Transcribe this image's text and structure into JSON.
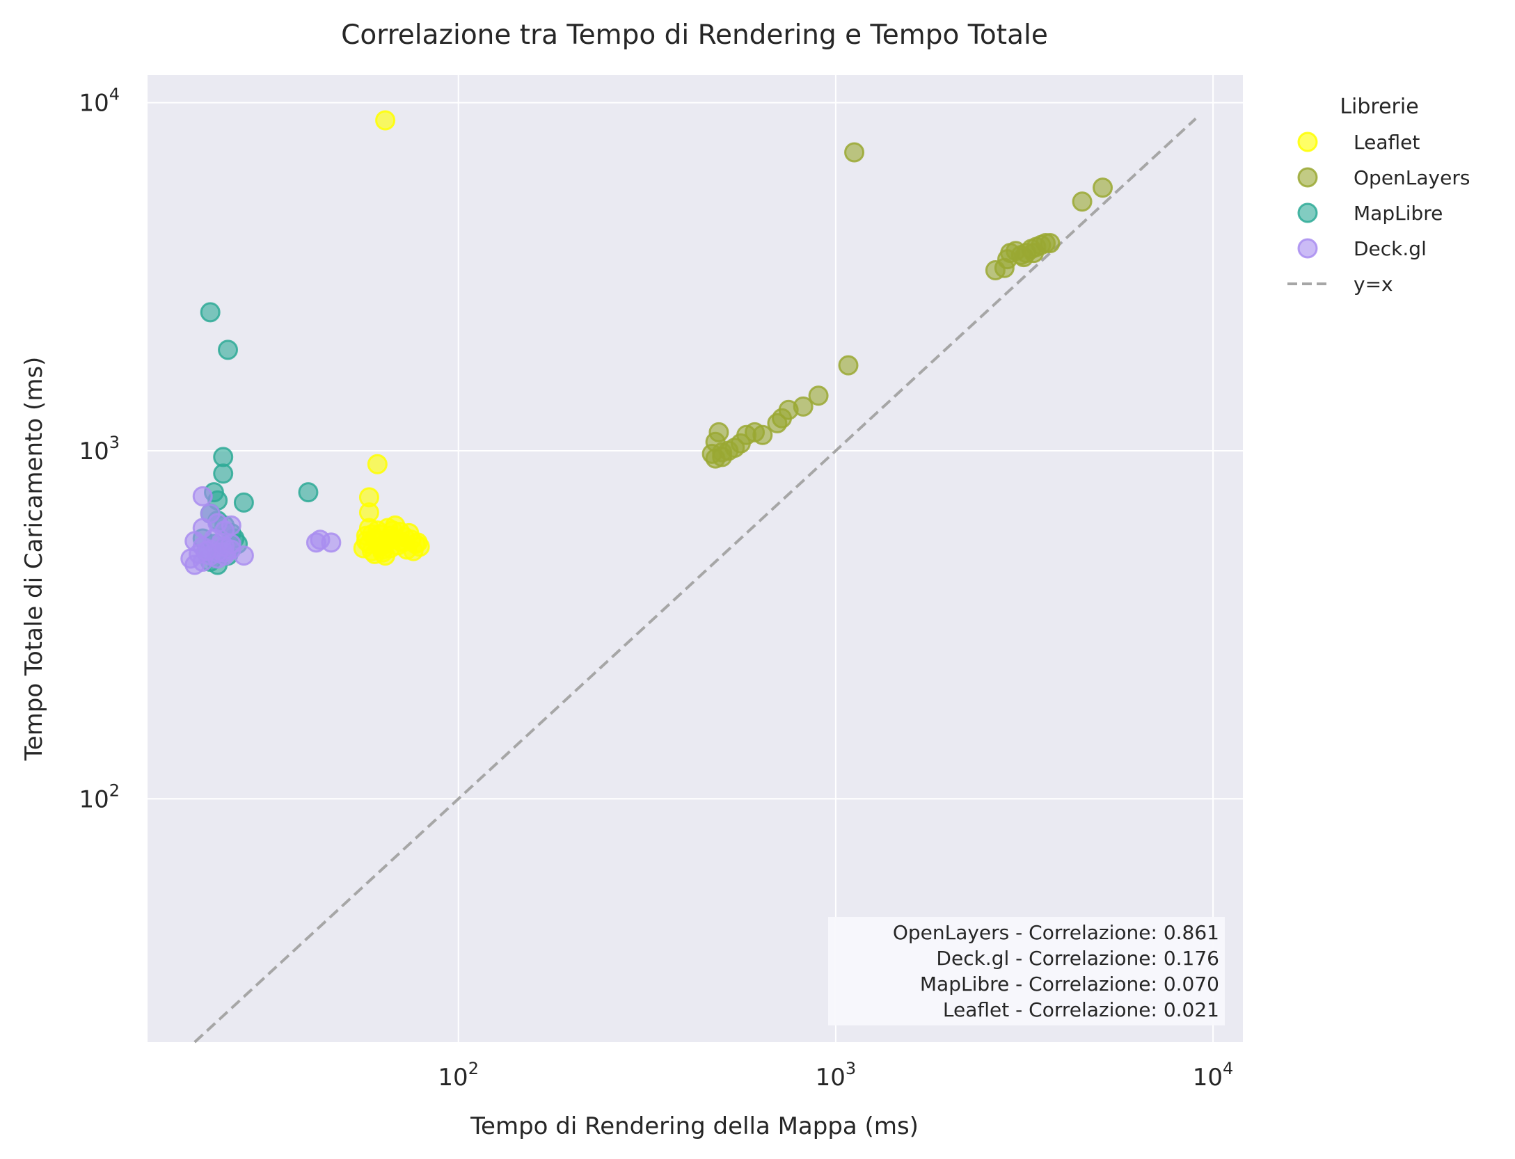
{
  "chart_data": {
    "type": "scatter",
    "title": "Correlazione tra Tempo di Rendering e Tempo Totale",
    "xlabel": "Tempo di Rendering della Mappa (ms)",
    "ylabel": "Tempo Totale di Caricamento (ms)",
    "xscale": "log",
    "yscale": "log",
    "xlim": [
      15,
      12000
    ],
    "ylim": [
      20,
      12000
    ],
    "x_ticks": [
      {
        "base": "10",
        "exp": "2",
        "value": 100
      },
      {
        "base": "10",
        "exp": "3",
        "value": 1000
      },
      {
        "base": "10",
        "exp": "4",
        "value": 10000
      }
    ],
    "y_ticks": [
      {
        "base": "10",
        "exp": "2",
        "value": 100
      },
      {
        "base": "10",
        "exp": "3",
        "value": 1000
      },
      {
        "base": "10",
        "exp": "4",
        "value": 10000
      }
    ],
    "grid": true,
    "background": "#eaeaf2",
    "legend": {
      "title": "Librerie",
      "placement": "outside-top-right",
      "reference_label": "y=x"
    },
    "reference_line": {
      "label": "y=x",
      "x": [
        20,
        9000
      ],
      "y": [
        20,
        9000
      ],
      "color": "#a6a6a6",
      "style": "dashed"
    },
    "annotations": [
      "OpenLayers - Correlazione: 0.861",
      "Deck.gl - Correlazione: 0.176",
      "MapLibre - Correlazione: 0.070",
      "Leaflet - Correlazione: 0.021"
    ],
    "series": [
      {
        "name": "Leaflet",
        "color": "#ffff00",
        "points": [
          [
            64,
            8900
          ],
          [
            61,
            915
          ],
          [
            58,
            735
          ],
          [
            58,
            665
          ],
          [
            58,
            600
          ],
          [
            59,
            575
          ],
          [
            60,
            560
          ],
          [
            61,
            545
          ],
          [
            62,
            530
          ],
          [
            63,
            520
          ],
          [
            64,
            540
          ],
          [
            65,
            555
          ],
          [
            66,
            570
          ],
          [
            67,
            590
          ],
          [
            68,
            610
          ],
          [
            70,
            585
          ],
          [
            72,
            565
          ],
          [
            74,
            580
          ],
          [
            75,
            555
          ],
          [
            77,
            540
          ],
          [
            79,
            530
          ],
          [
            56,
            525
          ],
          [
            57,
            550
          ],
          [
            59,
            515
          ],
          [
            60,
            505
          ],
          [
            63,
            510
          ],
          [
            66,
            525
          ],
          [
            69,
            535
          ],
          [
            71,
            545
          ],
          [
            73,
            520
          ],
          [
            76,
            515
          ],
          [
            78,
            545
          ],
          [
            57,
            570
          ],
          [
            62,
            575
          ],
          [
            67,
            560
          ],
          [
            70,
            550
          ],
          [
            64,
            500
          ],
          [
            58,
            540
          ],
          [
            61,
            590
          ],
          [
            65,
            600
          ]
        ]
      },
      {
        "name": "OpenLayers",
        "color": "#9aa832",
        "points": [
          [
            1120,
            7200
          ],
          [
            5100,
            5700
          ],
          [
            4500,
            5200
          ],
          [
            3700,
            3950
          ],
          [
            3600,
            3950
          ],
          [
            3500,
            3900
          ],
          [
            3400,
            3850
          ],
          [
            3300,
            3800
          ],
          [
            3200,
            3700
          ],
          [
            3100,
            3650
          ],
          [
            3000,
            3750
          ],
          [
            2900,
            3700
          ],
          [
            2850,
            3550
          ],
          [
            2800,
            3350
          ],
          [
            2650,
            3300
          ],
          [
            3150,
            3600
          ],
          [
            3350,
            3700
          ],
          [
            1080,
            1760
          ],
          [
            900,
            1440
          ],
          [
            820,
            1340
          ],
          [
            750,
            1310
          ],
          [
            720,
            1240
          ],
          [
            700,
            1200
          ],
          [
            640,
            1110
          ],
          [
            610,
            1130
          ],
          [
            580,
            1110
          ],
          [
            560,
            1050
          ],
          [
            540,
            1020
          ],
          [
            500,
            960
          ],
          [
            490,
            1130
          ],
          [
            480,
            1060
          ],
          [
            470,
            980
          ],
          [
            480,
            950
          ],
          [
            500,
            990
          ],
          [
            520,
            1000
          ]
        ]
      },
      {
        "name": "MapLibre",
        "color": "#2eaa97",
        "points": [
          [
            22,
            2500
          ],
          [
            24.5,
            1950
          ],
          [
            23.8,
            960
          ],
          [
            23.8,
            860
          ],
          [
            27,
            710
          ],
          [
            40,
            760
          ],
          [
            22.5,
            760
          ],
          [
            23,
            720
          ],
          [
            22,
            660
          ],
          [
            23,
            630
          ],
          [
            24,
            610
          ],
          [
            25,
            580
          ],
          [
            26,
            540
          ],
          [
            21,
            560
          ],
          [
            22.5,
            540
          ],
          [
            23.5,
            520
          ],
          [
            24.5,
            500
          ],
          [
            22,
            480
          ],
          [
            23,
            470
          ],
          [
            21.5,
            510
          ],
          [
            25.5,
            560
          ]
        ]
      },
      {
        "name": "Deck.gl",
        "color": "#a98df0",
        "points": [
          [
            21,
            740
          ],
          [
            22,
            660
          ],
          [
            21,
            600
          ],
          [
            23,
            620
          ],
          [
            24,
            590
          ],
          [
            25,
            610
          ],
          [
            20,
            550
          ],
          [
            21,
            530
          ],
          [
            22,
            520
          ],
          [
            23,
            510
          ],
          [
            24,
            500
          ],
          [
            19.5,
            490
          ],
          [
            20,
            470
          ],
          [
            21,
            480
          ],
          [
            22,
            500
          ],
          [
            23,
            490
          ],
          [
            24,
            510
          ],
          [
            25,
            520
          ],
          [
            27,
            500
          ],
          [
            22.5,
            560
          ],
          [
            23.5,
            545
          ],
          [
            42,
            545
          ],
          [
            43,
            555
          ],
          [
            46,
            545
          ],
          [
            20.5,
            505
          ],
          [
            21.5,
            515
          ],
          [
            24,
            530
          ],
          [
            25,
            540
          ]
        ]
      }
    ]
  }
}
